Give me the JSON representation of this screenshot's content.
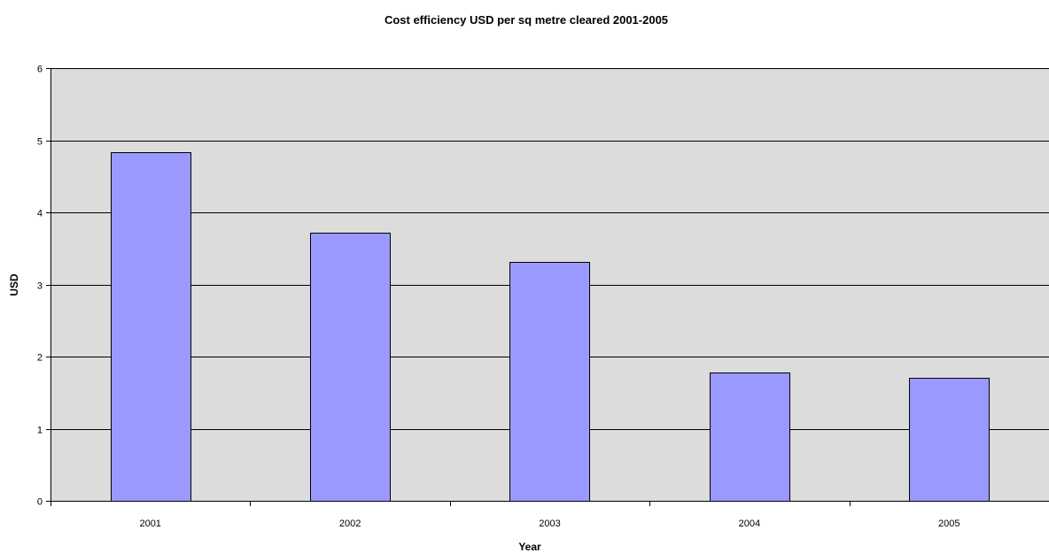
{
  "chart_data": {
    "type": "bar",
    "title": "Cost efficiency USD per sq metre cleared 2001-2005",
    "xlabel": "Year",
    "ylabel": "USD",
    "categories": [
      "2001",
      "2002",
      "2003",
      "2004",
      "2005"
    ],
    "values": [
      4.83,
      3.72,
      3.31,
      1.78,
      1.7
    ],
    "ylim": [
      0,
      6
    ],
    "yticks": [
      "0",
      "1",
      "2",
      "3",
      "4",
      "5",
      "6"
    ],
    "grid": true,
    "legend": "none",
    "colors": {
      "bar_fill": "#9999ff",
      "bar_stroke": "#000000",
      "plot_background": "#dcdcdc",
      "gridline": "#000000"
    }
  }
}
